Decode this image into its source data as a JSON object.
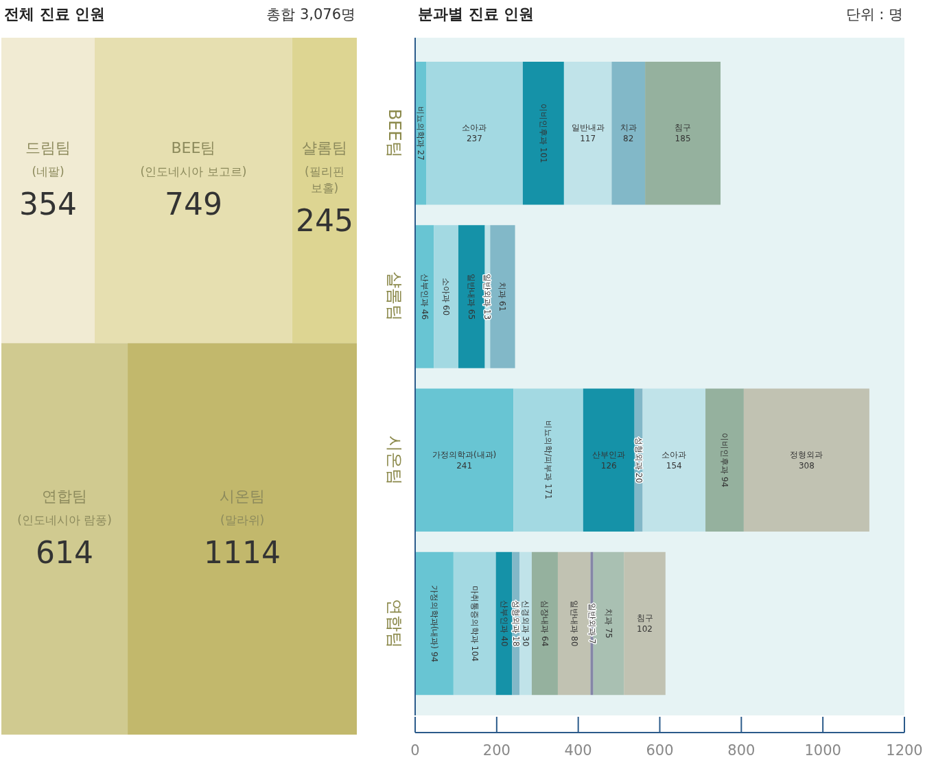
{
  "chart_data": [
    {
      "type": "other",
      "title": "전체 진료 인원",
      "subtitle": "총합 3,076명",
      "data_labels": true,
      "categories": [
        "드림팀",
        "BEE팀",
        "샬롬팀",
        "연합팀",
        "시온팀"
      ],
      "values": [
        354,
        749,
        245,
        614,
        1114
      ],
      "colors": [
        "#f1ebd3",
        "#e6dfb0",
        "#ddd592",
        "#d0ca90",
        "#c2b86c"
      ],
      "annotations": [
        "(네팔)",
        "(인도네시아 보고르)",
        "(필리핀 보홀)",
        "(인도네시아 람풍)",
        "(말라위)"
      ]
    },
    {
      "type": "bar",
      "orientation": "horizontal",
      "stacked": true,
      "data_labels": true,
      "title": "분과별 진료 인원",
      "subtitle": "단위 : 명",
      "categories": [
        "BEE팀",
        "샬롬팀",
        "시온팀",
        "연합팀"
      ],
      "xlim": [
        0,
        1200
      ],
      "xticks": [
        0,
        200,
        400,
        600,
        800,
        1000,
        1200
      ],
      "series": [
        {
          "name": "비뇨의학과",
          "color": "#68c5d3",
          "values": [
            27,
            null,
            null,
            null
          ]
        },
        {
          "name": "소아과",
          "color": "#a3d9e2",
          "values": [
            237,
            null,
            null,
            null
          ]
        },
        {
          "name": "이비인후과",
          "color": "#1592a8",
          "values": [
            101,
            null,
            null,
            null
          ]
        },
        {
          "name": "일반내과",
          "color": "#c0e3e9",
          "values": [
            117,
            null,
            null,
            null
          ]
        },
        {
          "name": "치과",
          "color": "#82b8c8",
          "values": [
            82,
            null,
            null,
            null
          ]
        },
        {
          "name": "침구",
          "color": "#95b19e",
          "values": [
            185,
            null,
            null,
            null
          ]
        },
        {
          "name": "산부인과",
          "color": "#68c5d3",
          "values": [
            null,
            46,
            null,
            null
          ]
        },
        {
          "name": "소아과",
          "color": "#a3d9e2",
          "values": [
            null,
            60,
            null,
            null
          ]
        },
        {
          "name": "일반내과",
          "color": "#1592a8",
          "values": [
            null,
            65,
            null,
            null
          ]
        },
        {
          "name": "일반외과",
          "color": "#c0e3e9",
          "values": [
            null,
            13,
            null,
            null
          ]
        },
        {
          "name": "치과",
          "color": "#82b8c8",
          "values": [
            null,
            61,
            null,
            null
          ]
        },
        {
          "name": "가정의학과(내과)",
          "color": "#68c5d3",
          "values": [
            null,
            null,
            241,
            null
          ]
        },
        {
          "name": "비뇨의학/피부과",
          "color": "#a3d9e2",
          "values": [
            null,
            null,
            171,
            null
          ]
        },
        {
          "name": "산부인과",
          "color": "#1592a8",
          "values": [
            null,
            null,
            126,
            null
          ]
        },
        {
          "name": "성형외과",
          "color": "#82b8c8",
          "values": [
            null,
            null,
            20,
            null
          ]
        },
        {
          "name": "소아과",
          "color": "#c0e3e9",
          "values": [
            null,
            null,
            154,
            null
          ]
        },
        {
          "name": "이비인후과",
          "color": "#95b19e",
          "values": [
            null,
            null,
            94,
            null
          ]
        },
        {
          "name": "정형외과",
          "color": "#c1c2b2",
          "values": [
            null,
            null,
            308,
            null
          ]
        },
        {
          "name": "가정의학과(내과)",
          "color": "#68c5d3",
          "values": [
            null,
            null,
            null,
            94
          ]
        },
        {
          "name": "마취통증의학과",
          "color": "#a3d9e2",
          "values": [
            null,
            null,
            null,
            104
          ]
        },
        {
          "name": "산부인과",
          "color": "#1592a8",
          "values": [
            null,
            null,
            null,
            40
          ]
        },
        {
          "name": "성형외과",
          "color": "#82b8c8",
          "values": [
            null,
            null,
            null,
            18
          ]
        },
        {
          "name": "신경외과",
          "color": "#c0e3e9",
          "values": [
            null,
            null,
            null,
            30
          ]
        },
        {
          "name": "심장내과",
          "color": "#95b19e",
          "values": [
            null,
            null,
            null,
            64
          ]
        },
        {
          "name": "일반내과",
          "color": "#c1c2b2",
          "values": [
            null,
            null,
            null,
            80
          ]
        },
        {
          "name": "일반외과",
          "color": "#8586a7",
          "values": [
            null,
            null,
            null,
            7
          ]
        },
        {
          "name": "치과",
          "color": "#a9c0b2",
          "values": [
            null,
            null,
            null,
            75
          ]
        },
        {
          "name": "침구",
          "color": "#c1c2b2",
          "values": [
            null,
            null,
            null,
            102
          ]
        }
      ]
    }
  ]
}
